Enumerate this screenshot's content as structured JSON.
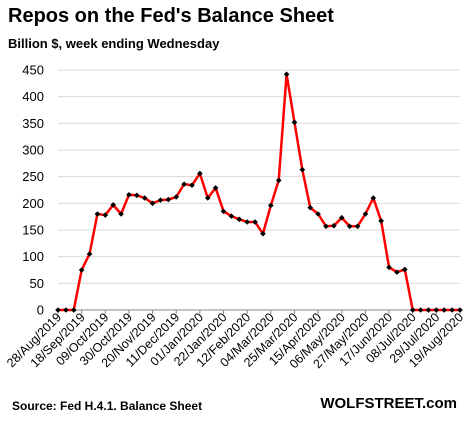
{
  "chart_data": {
    "type": "line",
    "title": "Repos on the Fed's Balance Sheet",
    "subtitle": "Billion $, week ending Wednesday",
    "xlabel": "",
    "ylabel": "",
    "ylim": [
      0,
      450
    ],
    "yticks": [
      0,
      50,
      100,
      150,
      200,
      250,
      300,
      350,
      400,
      450
    ],
    "grid": true,
    "legend": "none",
    "line_color": "#ff0000",
    "marker_color": "#000000",
    "grid_color": "#d9d9d9",
    "x_tick_labels": [
      "28/Aug/2019",
      "18/Sep/2019",
      "09/Oct/2019",
      "30/Oct/2019",
      "20/Nov/2019",
      "11/Dec/2019",
      "01/Jan/2020",
      "22/Jan/2020",
      "12/Feb/2020",
      "04/Mar/2020",
      "25/Mar/2020",
      "15/Apr/2020",
      "06/May/2020",
      "27/May/2020",
      "17/Jun/2020",
      "08/Jul/2020",
      "29/Jul/2020",
      "19/Aug/2020"
    ],
    "series": [
      {
        "values": [
          0,
          0,
          0,
          75,
          105,
          180,
          178,
          197,
          180,
          216,
          215,
          210,
          200,
          206,
          207,
          212,
          236,
          234,
          256,
          210,
          229,
          185,
          176,
          170,
          165,
          165,
          143,
          196,
          243,
          442,
          352,
          263,
          192,
          180,
          157,
          158,
          173,
          157,
          157,
          180,
          210,
          167,
          80,
          71,
          76,
          0,
          0,
          0,
          0,
          0,
          0,
          0
        ]
      }
    ]
  },
  "footer": {
    "source": "Source: Fed H.4.1. Balance Sheet",
    "brand": "WOLFSTREET.com"
  }
}
